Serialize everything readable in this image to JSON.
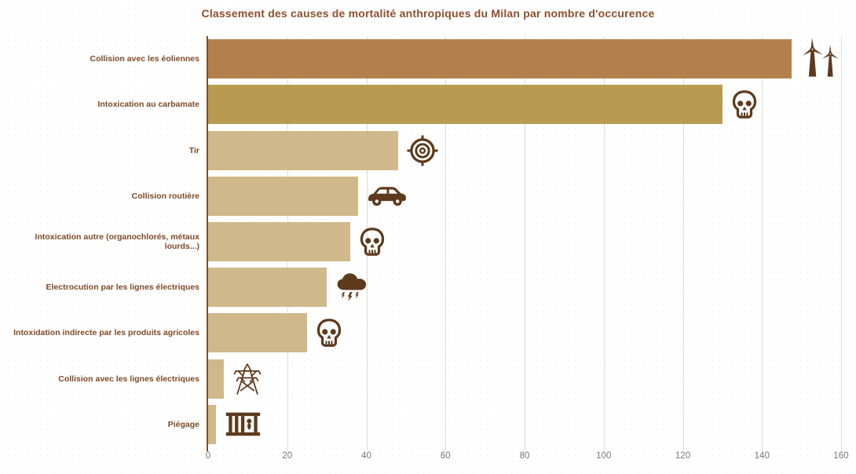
{
  "chart_data": {
    "type": "bar",
    "orientation": "horizontal",
    "title": "Classement des causes de mortalité anthropiques du Milan par nombre d'occurence",
    "categories": [
      "Collision avec les éoliennes",
      "Intoxication au carbamate",
      "Tir",
      "Collision routière",
      "Intoxication autre (organochlorés, métaux lourds...)",
      "Electrocution par les lignes électriques",
      "Intoxidation indirecte par les produits agricoles",
      "Collision avec les lignes électriques",
      "Piégage"
    ],
    "values": [
      151,
      130,
      48,
      38,
      36,
      30,
      25,
      4,
      2
    ],
    "bar_colors": [
      "#b3804d",
      "#b89b51",
      "#cfb98a",
      "#cfb98a",
      "#cfb98a",
      "#cfb98a",
      "#cfb98a",
      "#cfb98a",
      "#cfb98a"
    ],
    "icons": [
      "wind-turbines",
      "skull",
      "target",
      "car",
      "skull",
      "storm-cloud",
      "skull",
      "power-pylon",
      "cage-trap"
    ],
    "xlabel": "",
    "ylabel": "",
    "xlim": [
      0,
      160
    ],
    "xticks": [
      0,
      20,
      40,
      60,
      80,
      100,
      120,
      140,
      160
    ],
    "grid": "vertical-gridlines",
    "legend": "none"
  },
  "colors": {
    "bar_primary": "#b3804d",
    "bar_secondary": "#b89b51",
    "bar_default": "#cfb98a",
    "icon": "#5d3a1c",
    "label_text": "#7d4a27",
    "title_text": "#8e4e2c",
    "tick_text": "#767676",
    "gridline": "#dcdbd7",
    "axis_line": "#7d4f28"
  }
}
